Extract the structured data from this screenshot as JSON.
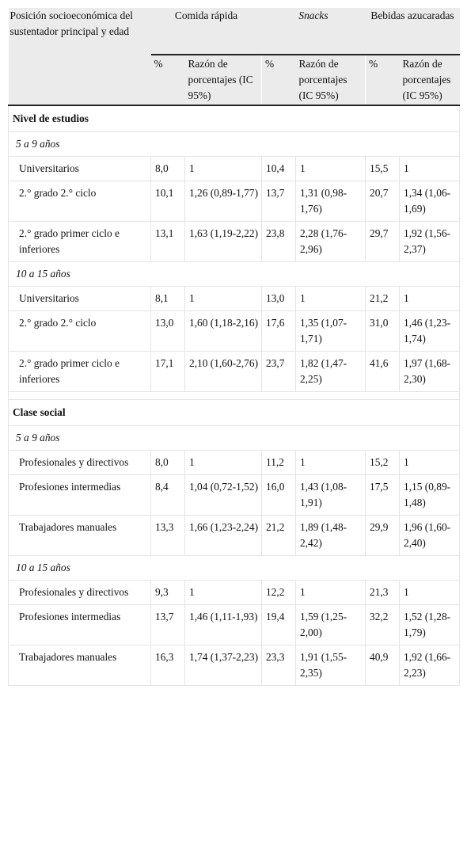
{
  "header": {
    "row_label": "Posición socioeconómica del sustentador principal y edad",
    "groups": [
      "Comida rápida",
      "Snacks",
      "Bebidas azucaradas"
    ],
    "pct": "%",
    "ratio": "Razón de porcentajes (IC 95%)"
  },
  "sections": [
    {
      "title": "Nivel de estudios",
      "subgroups": [
        {
          "title": "5 a 9 años",
          "rows": [
            {
              "label": "Universitarios",
              "v": [
                "8,0",
                "1",
                "10,4",
                "1",
                "15,5",
                "1"
              ]
            },
            {
              "label": "2.° grado 2.° ciclo",
              "v": [
                "10,1",
                "1,26 (0,89-1,77)",
                "13,7",
                "1,31 (0,98-1,76)",
                "20,7",
                "1,34 (1,06-1,69)"
              ]
            },
            {
              "label": "2.° grado primer ciclo e inferiores",
              "v": [
                "13,1",
                "1,63 (1,19-2,22)",
                "23,8",
                "2,28 (1,76-2,96)",
                "29,7",
                "1,92 (1,56-2,37)"
              ]
            }
          ]
        },
        {
          "title": "10 a 15 años",
          "rows": [
            {
              "label": "Universitarios",
              "v": [
                "8,1",
                "1",
                "13,0",
                "1",
                "21,2",
                "1"
              ]
            },
            {
              "label": "2.° grado 2.° ciclo",
              "v": [
                "13,0",
                "1,60 (1,18-2,16)",
                "17,6",
                "1,35 (1,07-1,71)",
                "31,0",
                "1,46 (1,23-1,74)"
              ]
            },
            {
              "label": "2.° grado primer ciclo e inferiores",
              "v": [
                "17,1",
                "2,10 (1,60-2,76)",
                "23,7",
                "1,82 (1,47-2,25)",
                "41,6",
                "1,97 (1,68-2,30)"
              ]
            }
          ]
        }
      ]
    },
    {
      "title": "Clase social",
      "subgroups": [
        {
          "title": "5 a 9 años",
          "rows": [
            {
              "label": "Profesionales y directivos",
              "v": [
                "8,0",
                "1",
                "11,2",
                "1",
                "15,2",
                "1"
              ]
            },
            {
              "label": "Profesiones intermedias",
              "v": [
                "8,4",
                "1,04 (0,72-1,52)",
                "16,0",
                "1,43 (1,08-1,91)",
                "17,5",
                "1,15 (0,89-1,48)"
              ]
            },
            {
              "label": "Trabajadores manuales",
              "v": [
                "13,3",
                "1,66 (1,23-2,24)",
                "21,2",
                "1,89 (1,48-2,42)",
                "29,9",
                "1,96 (1,60-2,40)"
              ]
            }
          ]
        },
        {
          "title": "10 a 15 años",
          "rows": [
            {
              "label": "Profesionales y directivos",
              "v": [
                "9,3",
                "1",
                "12,2",
                "1",
                "21,3",
                "1"
              ]
            },
            {
              "label": "Profesiones intermedias",
              "v": [
                "13,7",
                "1,46 (1,11-1,93)",
                "19,4",
                "1,59 (1,25-2,00)",
                "32,2",
                "1,52 (1,28-1,79)"
              ]
            },
            {
              "label": "Trabajadores manuales",
              "v": [
                "16,3",
                "1,74 (1,37-2,23)",
                "23,3",
                "1,91 (1,55-2,35)",
                "40,9",
                "1,92 (1,66-2,23)"
              ]
            }
          ]
        }
      ]
    }
  ]
}
